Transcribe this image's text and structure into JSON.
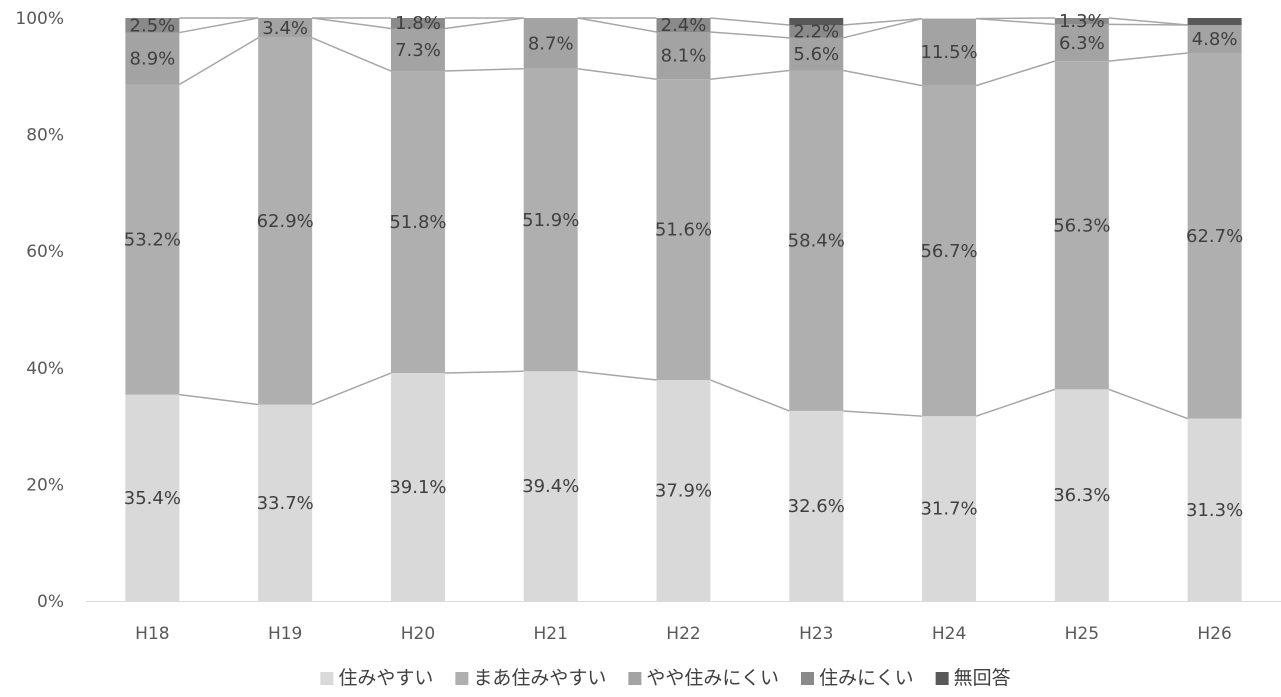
{
  "chart_data": {
    "type": "bar",
    "stacked": true,
    "percent": true,
    "categories": [
      "H18",
      "H19",
      "H20",
      "H21",
      "H22",
      "H23",
      "H24",
      "H25",
      "H26"
    ],
    "series": [
      {
        "name": "住みやすい",
        "color": "#d9d9d9",
        "values": [
          35.4,
          33.7,
          39.1,
          39.4,
          37.9,
          32.6,
          31.7,
          36.3,
          31.3
        ]
      },
      {
        "name": "まあ住みやすい",
        "color": "#afafaf",
        "values": [
          53.2,
          62.9,
          51.8,
          51.9,
          51.6,
          58.4,
          56.7,
          56.3,
          62.7
        ]
      },
      {
        "name": "やや住みにくい",
        "color": "#a3a3a3",
        "values": [
          8.9,
          3.4,
          7.3,
          8.7,
          8.1,
          5.6,
          11.5,
          6.3,
          4.8
        ]
      },
      {
        "name": "住みにくい",
        "color": "#8a8a8a",
        "values": [
          2.5,
          0.0,
          1.8,
          0.0,
          2.4,
          2.2,
          0.0,
          1.3,
          0.0
        ]
      },
      {
        "name": "無回答",
        "color": "#595959",
        "values": [
          0.0,
          0.0,
          0.0,
          0.0,
          0.0,
          1.2,
          0.0,
          0.0,
          1.2
        ]
      }
    ],
    "data_labels": [
      [
        "35.4%",
        "33.7%",
        "39.1%",
        "39.4%",
        "37.9%",
        "32.6%",
        "31.7%",
        "36.3%",
        "31.3%"
      ],
      [
        "53.2%",
        "62.9%",
        "51.8%",
        "51.9%",
        "51.6%",
        "58.4%",
        "56.7%",
        "56.3%",
        "62.7%"
      ],
      [
        "8.9%",
        "3.4%",
        "7.3%",
        "8.7%",
        "8.1%",
        "5.6%",
        "11.5%",
        "6.3%",
        "4.8%"
      ],
      [
        "2.5%",
        "",
        "1.8%",
        "",
        "2.4%",
        "2.2%",
        "",
        "1.3%",
        ""
      ],
      [
        "",
        "",
        "",
        "",
        "",
        "",
        "",
        "",
        ""
      ]
    ],
    "y_ticks": [
      "0%",
      "20%",
      "40%",
      "60%",
      "80%",
      "100%"
    ],
    "ylim": [
      0,
      100
    ],
    "series_lines": true,
    "grid": false,
    "legend_position": "bottom",
    "title": "",
    "xlabel": "",
    "ylabel": ""
  }
}
